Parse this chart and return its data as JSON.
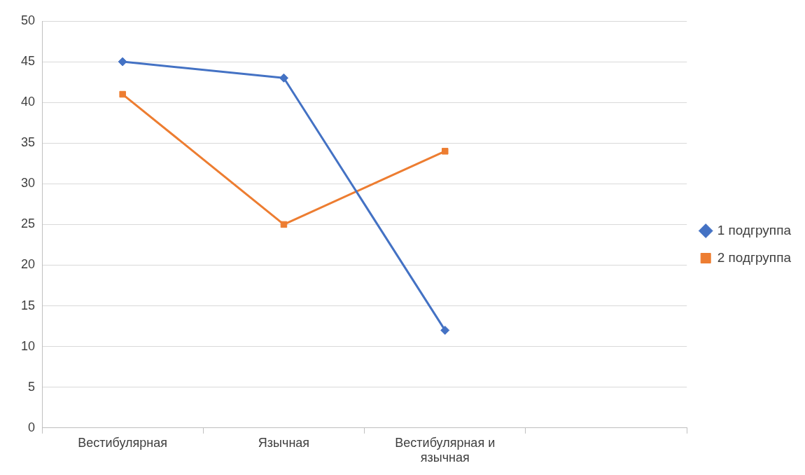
{
  "chart_data": {
    "type": "line",
    "categories": [
      "Вестибулярная",
      "Язычная",
      "Вестибулярная и язычная",
      null
    ],
    "series": [
      {
        "name": "1 подгруппа",
        "color": "#4472c4",
        "marker": "diamond",
        "values": [
          45,
          43,
          12,
          null
        ]
      },
      {
        "name": "2 подгруппа",
        "color": "#ed7d31",
        "marker": "square",
        "values": [
          41,
          25,
          34,
          null
        ]
      }
    ],
    "ylim": [
      0,
      50
    ],
    "yticks": [
      0,
      5,
      10,
      15,
      20,
      25,
      30,
      35,
      40,
      45,
      50
    ],
    "grid": "y",
    "legend": "right",
    "line_style": "solid"
  }
}
